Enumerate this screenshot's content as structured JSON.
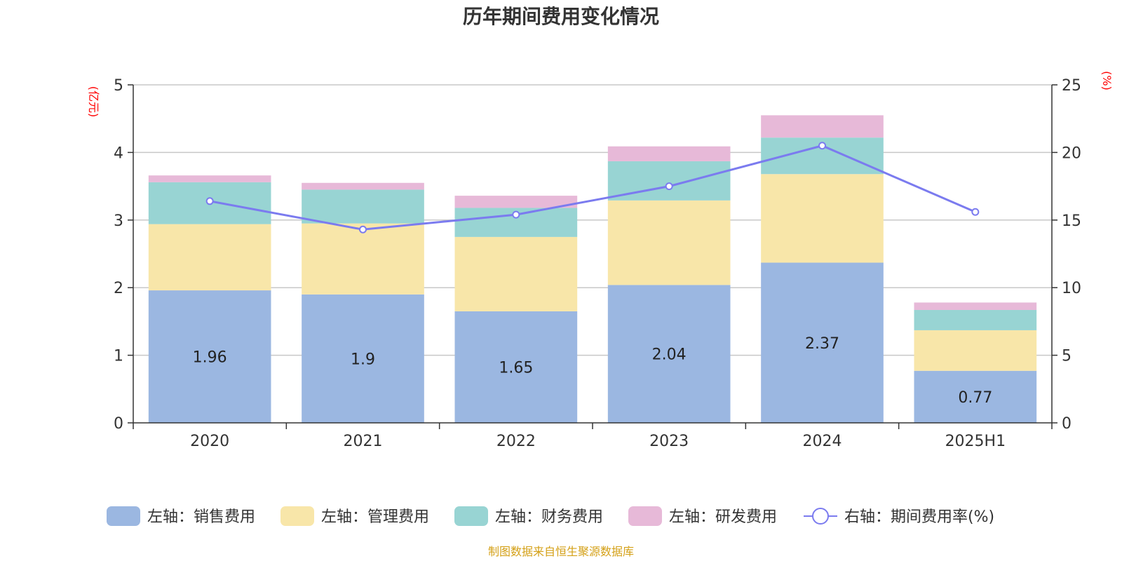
{
  "chart_data": {
    "type": "bar",
    "title": "历年期间费用变化情况",
    "categories": [
      "2020",
      "2021",
      "2022",
      "2023",
      "2024",
      "2025H1"
    ],
    "y_left": {
      "unit": "(亿元)",
      "range": [
        0,
        5
      ],
      "ticks": [
        0,
        1,
        2,
        3,
        4,
        5
      ]
    },
    "y_right": {
      "unit": "(%)",
      "range": [
        0,
        25
      ],
      "ticks": [
        0,
        5,
        10,
        15,
        20,
        25
      ]
    },
    "grid": true,
    "legend_position": "bottom",
    "series": [
      {
        "name": "左轴：销售费用",
        "type": "bar",
        "axis": "left",
        "color": "#9bb7e1",
        "values": [
          1.96,
          1.9,
          1.65,
          2.04,
          2.37,
          0.77
        ],
        "labels": [
          "1.96",
          "1.9",
          "1.65",
          "2.04",
          "2.37",
          "0.77"
        ]
      },
      {
        "name": "左轴：管理费用",
        "type": "bar",
        "axis": "left",
        "color": "#f8e6a9",
        "values": [
          0.98,
          1.05,
          1.1,
          1.25,
          1.31,
          0.6
        ]
      },
      {
        "name": "左轴：财务费用",
        "type": "bar",
        "axis": "left",
        "color": "#98d4d3",
        "values": [
          0.62,
          0.5,
          0.43,
          0.58,
          0.54,
          0.3
        ]
      },
      {
        "name": "左轴：研发费用",
        "type": "bar",
        "axis": "left",
        "color": "#e7b9d8",
        "values": [
          0.1,
          0.1,
          0.18,
          0.22,
          0.33,
          0.11
        ]
      },
      {
        "name": "右轴：期间费用率(%)",
        "type": "line",
        "axis": "right",
        "color": "#7b7bef",
        "values": [
          16.4,
          14.3,
          15.4,
          17.5,
          20.5,
          15.6
        ]
      }
    ]
  },
  "source_note": "制图数据来自恒生聚源数据库"
}
